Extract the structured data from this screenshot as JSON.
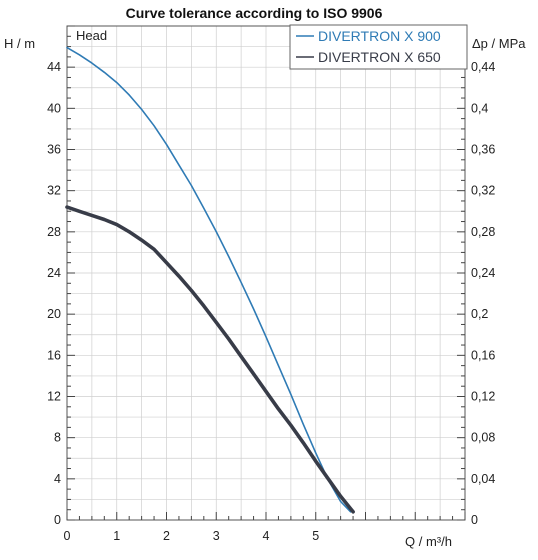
{
  "chart_data": {
    "type": "line",
    "title": "Curve tolerance according to ISO 9906",
    "panel_label": "Head",
    "xlabel": "Q / m³/h",
    "ylabel_left": "H / m",
    "ylabel_right": "Δp / MPa",
    "xlim": [
      0,
      8
    ],
    "ylim_left": [
      0,
      48
    ],
    "ylim_right": [
      0,
      0.48
    ],
    "x_ticks": [
      {
        "v": 0,
        "label": "0"
      },
      {
        "v": 1,
        "label": "1"
      },
      {
        "v": 2,
        "label": "2"
      },
      {
        "v": 3,
        "label": "3"
      },
      {
        "v": 4,
        "label": "4"
      },
      {
        "v": 5,
        "label": "5"
      }
    ],
    "y_left_ticks": [
      {
        "v": 0,
        "label": "0"
      },
      {
        "v": 4,
        "label": "4"
      },
      {
        "v": 8,
        "label": "8"
      },
      {
        "v": 12,
        "label": "12"
      },
      {
        "v": 16,
        "label": "16"
      },
      {
        "v": 20,
        "label": "20"
      },
      {
        "v": 24,
        "label": "24"
      },
      {
        "v": 28,
        "label": "28"
      },
      {
        "v": 32,
        "label": "32"
      },
      {
        "v": 36,
        "label": "36"
      },
      {
        "v": 40,
        "label": "40"
      },
      {
        "v": 44,
        "label": "44"
      }
    ],
    "y_right_ticks": [
      {
        "v": 0,
        "label": "0"
      },
      {
        "v": 0.04,
        "label": "0,04"
      },
      {
        "v": 0.08,
        "label": "0,08"
      },
      {
        "v": 0.12,
        "label": "0,12"
      },
      {
        "v": 0.16,
        "label": "0,16"
      },
      {
        "v": 0.2,
        "label": "0,2"
      },
      {
        "v": 0.24,
        "label": "0,24"
      },
      {
        "v": 0.28,
        "label": "0,28"
      },
      {
        "v": 0.32,
        "label": "0,32"
      },
      {
        "v": 0.36,
        "label": "0,36"
      },
      {
        "v": 0.4,
        "label": "0,4"
      },
      {
        "v": 0.44,
        "label": "0,44"
      }
    ],
    "grid": true,
    "legend_position": "top-right",
    "series": [
      {
        "name": "DIVERTRON X 900",
        "color": "#2f7bb5",
        "x": [
          0,
          0.25,
          0.5,
          0.75,
          1,
          1.25,
          1.5,
          1.75,
          2,
          2.25,
          2.5,
          2.75,
          3,
          3.25,
          3.5,
          3.75,
          4,
          4.25,
          4.5,
          4.75,
          5,
          5.25,
          5.5,
          5.7
        ],
        "y": [
          45.9,
          45.2,
          44.4,
          43.5,
          42.5,
          41.3,
          39.9,
          38.3,
          36.5,
          34.5,
          32.5,
          30.3,
          28.0,
          25.6,
          23.1,
          20.5,
          17.8,
          15.0,
          12.2,
          9.3,
          6.5,
          3.9,
          1.8,
          0.8
        ]
      },
      {
        "name": "DIVERTRON X 650",
        "color": "#383c48",
        "x": [
          0,
          0.25,
          0.5,
          0.75,
          1,
          1.25,
          1.5,
          1.75,
          2,
          2.25,
          2.5,
          2.75,
          3,
          3.25,
          3.5,
          3.75,
          4,
          4.25,
          4.5,
          4.75,
          5,
          5.25,
          5.5,
          5.75
        ],
        "y": [
          30.4,
          30.0,
          29.6,
          29.2,
          28.7,
          28.0,
          27.2,
          26.3,
          25.0,
          23.7,
          22.3,
          20.8,
          19.2,
          17.6,
          15.9,
          14.2,
          12.5,
          10.8,
          9.2,
          7.5,
          5.7,
          4.0,
          2.3,
          0.8
        ]
      }
    ]
  }
}
